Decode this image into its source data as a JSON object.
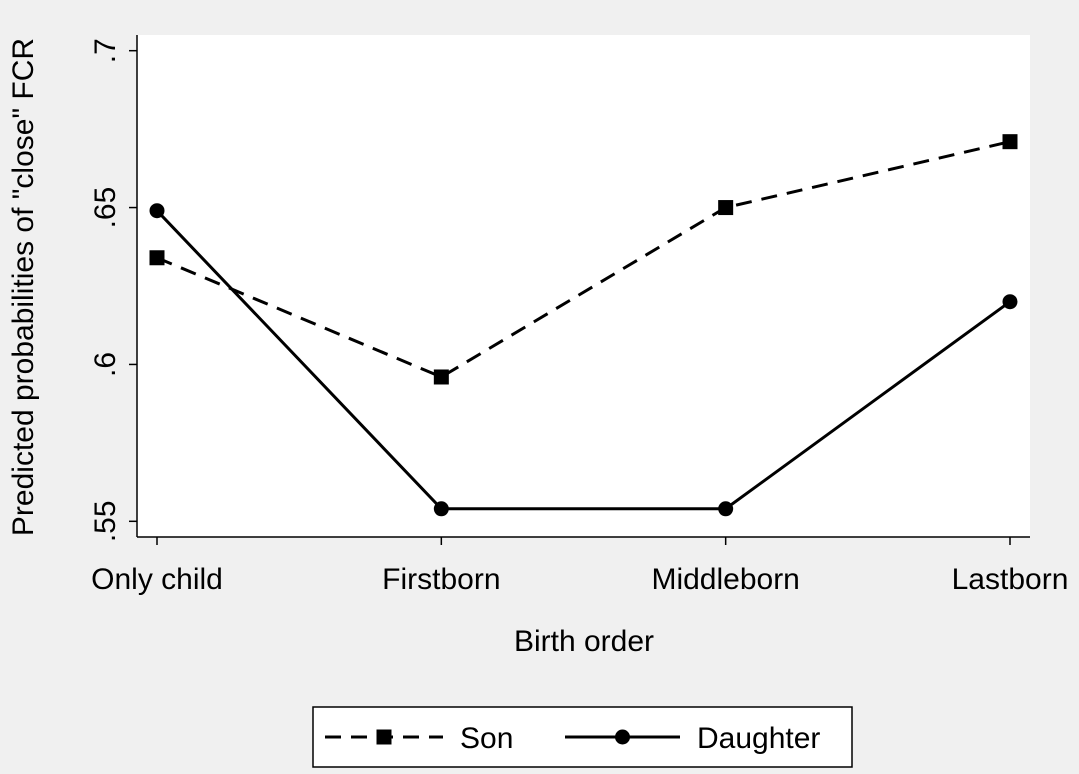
{
  "chart_data": {
    "type": "line",
    "title": "",
    "xlabel": "Birth order",
    "ylabel": "Predicted probabilities of \"close\" FCR",
    "categories": [
      "Only child",
      "Firstborn",
      "Middleborn",
      "Lastborn"
    ],
    "ylim": [
      0.545,
      0.705
    ],
    "yticks": [
      {
        "value": 0.55,
        "label": ".55"
      },
      {
        "value": 0.6,
        "label": ".6"
      },
      {
        "value": 0.65,
        "label": ".65"
      },
      {
        "value": 0.7,
        "label": ".7"
      }
    ],
    "grid": false,
    "legend_position": "bottom",
    "series": [
      {
        "name": "Son",
        "values": [
          0.634,
          0.596,
          0.65,
          0.671
        ],
        "line_style": "dashed",
        "marker": "square",
        "color": "#000000"
      },
      {
        "name": "Daughter",
        "values": [
          0.649,
          0.554,
          0.554,
          0.62
        ],
        "line_style": "solid",
        "marker": "circle",
        "color": "#000000"
      }
    ]
  },
  "colors": {
    "background": "#f0f0f0",
    "plot_area": "#ffffff",
    "ink": "#000000"
  }
}
